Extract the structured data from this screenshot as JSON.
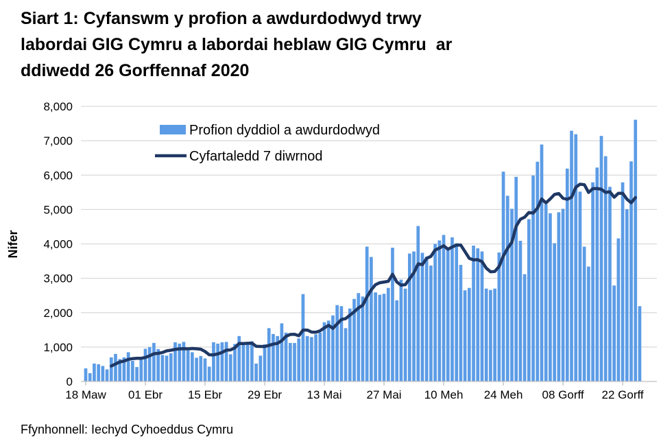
{
  "title_lines": [
    "Siart 1: Cyfanswm y profion a awdurdodwyd trwy",
    "labordai GIG Cymru a labordai heblaw GIG Cymru  ar",
    "ddiwedd 26 Gorffennaf 2020"
  ],
  "legend": {
    "bars_label": "Profion dyddiol a awdurdodwyd",
    "line_label": "Cyfartaledd 7 diwrnod"
  },
  "footer": {
    "source": "Ffynhonnell: Iechyd Cyhoeddus Cymru"
  },
  "colors": {
    "bar": "#5C9CE6",
    "line": "#1F3864",
    "grid": "#D9D9D9",
    "axis": "#BFBFBF",
    "text": "#000000"
  },
  "chart_data": {
    "type": "bar",
    "title": "Siart 1: Cyfanswm y profion a awdurdodwyd trwy labordai GIG Cymru a labordai heblaw GIG Cymru  ar ddiwedd 26 Gorffennaf 2020",
    "xlabel": "",
    "ylabel": "Nifer",
    "ylim": [
      0,
      8000
    ],
    "grid": "horizontal",
    "legend_position": "top-left-inside",
    "y_tick_labels": [
      "0",
      "1,000",
      "2,000",
      "3,000",
      "4,000",
      "5,000",
      "6,000",
      "7,000",
      "8,000"
    ],
    "x_ticks": [
      {
        "label": "18 Maw",
        "day": 0
      },
      {
        "label": "01 Ebr",
        "day": 14
      },
      {
        "label": "15 Ebr",
        "day": 28
      },
      {
        "label": "29 Ebr",
        "day": 42
      },
      {
        "label": "13 Mai",
        "day": 56
      },
      {
        "label": "27 Mai",
        "day": 70
      },
      {
        "label": "10 Meh",
        "day": 84
      },
      {
        "label": "24 Meh",
        "day": 98
      },
      {
        "label": "08 Gorff",
        "day": 112
      },
      {
        "label": "22 Gorff",
        "day": 126
      }
    ],
    "series": [
      {
        "name": "Profion dyddiol a awdurdodwyd",
        "type": "bar",
        "values": [
          380,
          240,
          520,
          500,
          450,
          350,
          700,
          800,
          650,
          700,
          850,
          600,
          420,
          700,
          950,
          1000,
          1120,
          940,
          770,
          750,
          820,
          1140,
          1100,
          1150,
          900,
          850,
          690,
          740,
          670,
          430,
          1140,
          1100,
          1140,
          1150,
          790,
          1090,
          1320,
          1120,
          1150,
          1170,
          520,
          750,
          1080,
          1550,
          1380,
          1320,
          1690,
          1420,
          1120,
          1120,
          1250,
          2540,
          1320,
          1290,
          1370,
          1420,
          1720,
          1770,
          1920,
          2220,
          2190,
          1550,
          2120,
          2400,
          2570,
          2470,
          3920,
          3620,
          2590,
          2520,
          2550,
          2720,
          3890,
          2360,
          2960,
          2700,
          3720,
          3780,
          4520,
          3740,
          3630,
          3370,
          4000,
          4100,
          4260,
          3820,
          4190,
          4020,
          3390,
          2650,
          2720,
          3950,
          3870,
          3780,
          2700,
          2660,
          2700,
          3750,
          6100,
          5400,
          5020,
          5950,
          4090,
          3120,
          4720,
          5990,
          6390,
          6890,
          5150,
          4890,
          4020,
          4920,
          5020,
          6190,
          7290,
          7190,
          5520,
          3920,
          3340,
          5790,
          6220,
          7140,
          6550,
          5660,
          2790,
          4160,
          5790,
          5010,
          6400,
          7610,
          2190
        ]
      },
      {
        "name": "Cyfartaledd 7 diwrnod",
        "type": "line",
        "derived": "rolling_mean_7",
        "window": 7,
        "omit_final_partial_day": true
      }
    ]
  }
}
